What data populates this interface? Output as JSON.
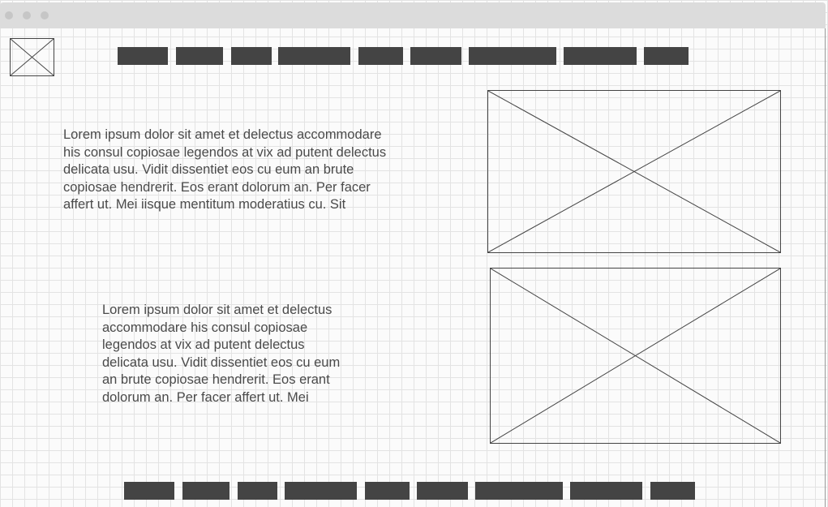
{
  "window": {
    "traffic_lights": [
      "close",
      "minimize",
      "maximize"
    ]
  },
  "logo": {
    "icon": "image-placeholder-icon"
  },
  "top_nav": {
    "items": [
      {
        "name": "top-nav-item-1"
      },
      {
        "name": "top-nav-item-2"
      },
      {
        "name": "top-nav-item-3"
      },
      {
        "name": "top-nav-item-4"
      },
      {
        "name": "top-nav-item-5"
      },
      {
        "name": "top-nav-item-6"
      },
      {
        "name": "top-nav-item-7"
      },
      {
        "name": "top-nav-item-8"
      },
      {
        "name": "top-nav-item-9"
      }
    ],
    "color": "#444444"
  },
  "sections": [
    {
      "text": "Lorem ipsum dolor sit amet et delectus accommodare\nhis consul copiosae legendos at vix ad putent delectus\ndelicata usu. Vidit dissentiet eos cu eum an brute\ncopiosae hendrerit. Eos erant dolorum an. Per facer\naffert ut. Mei iisque mentitum moderatius cu. Sit",
      "image_icon": "image-placeholder-icon"
    },
    {
      "text": "Lorem ipsum dolor sit amet et delectus\naccommodare his consul copiosae\nlegendos at vix ad putent delectus\ndelicata usu. Vidit dissentiet eos cu eum\nan brute copiosae hendrerit. Eos erant\ndolorum an. Per facer affert ut. Mei",
      "image_icon": "image-placeholder-icon"
    }
  ],
  "bottom_nav": {
    "items": [
      {
        "name": "bottom-nav-item-1"
      },
      {
        "name": "bottom-nav-item-2"
      },
      {
        "name": "bottom-nav-item-3"
      },
      {
        "name": "bottom-nav-item-4"
      },
      {
        "name": "bottom-nav-item-5"
      },
      {
        "name": "bottom-nav-item-6"
      },
      {
        "name": "bottom-nav-item-7"
      },
      {
        "name": "bottom-nav-item-8"
      },
      {
        "name": "bottom-nav-item-9"
      }
    ],
    "color": "#444444"
  },
  "colors": {
    "grid_line": "#e3e3e3",
    "background": "#fbfbfb",
    "placeholder_stroke": "#444444",
    "text": "#4a4a4a",
    "titlebar": "#dcdcdc"
  }
}
